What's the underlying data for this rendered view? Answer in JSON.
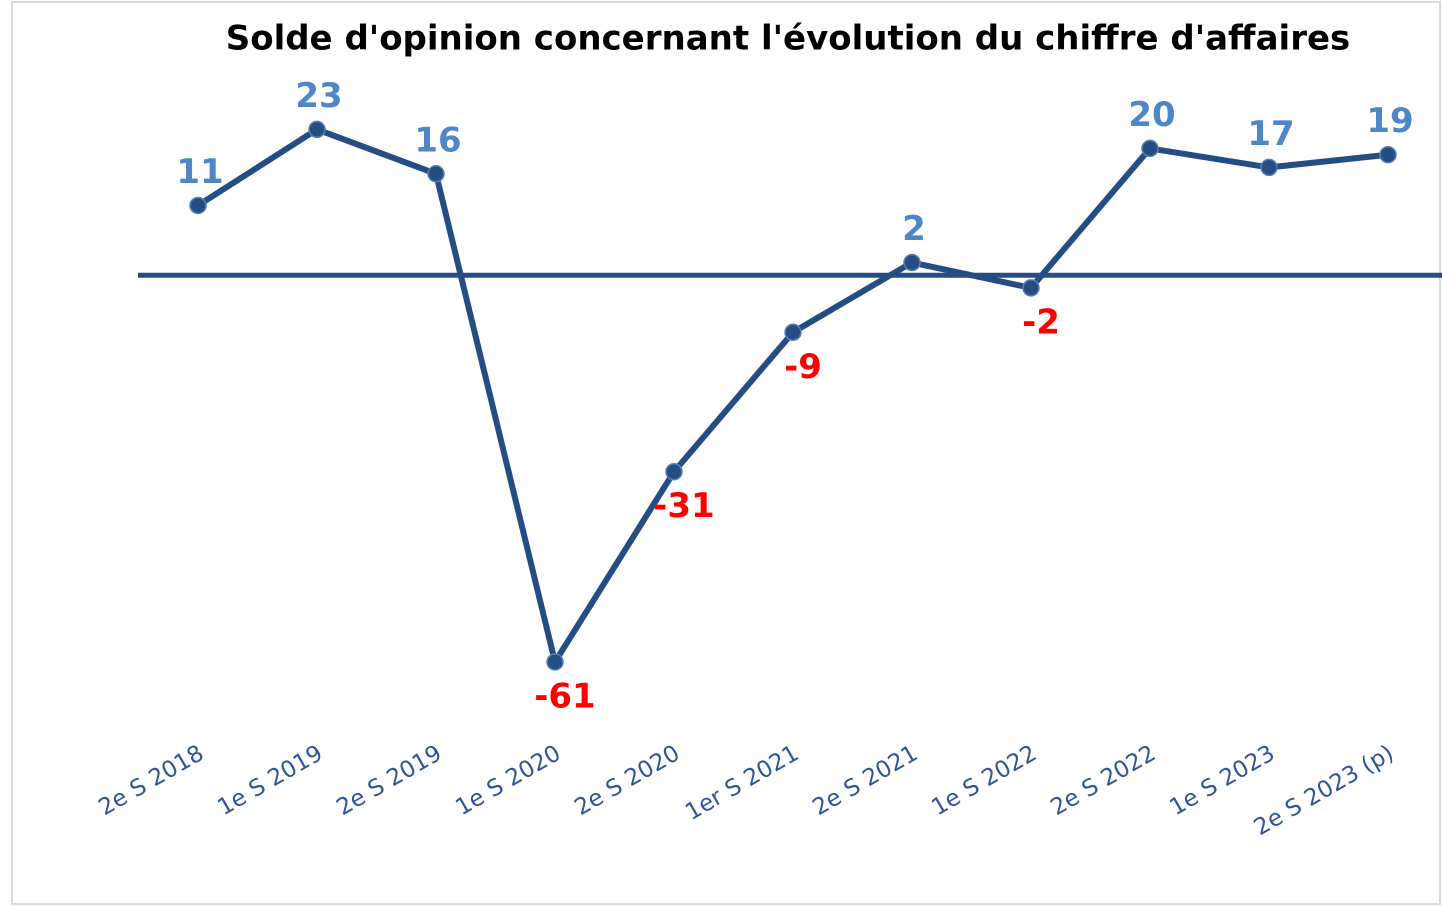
{
  "chart_data": {
    "type": "line",
    "title": "Solde d'opinion concernant l'évolution du chiffre d'affaires",
    "categories": [
      "2e S 2018",
      "1e S 2019",
      "2e S 2019",
      "1e S 2020",
      "2e S 2020",
      "1er S 2021",
      "2e S 2021",
      "1e S 2022",
      "2e S 2022",
      "1e S 2023",
      "2e S 2023 (p)"
    ],
    "values": [
      11,
      23,
      16,
      -61,
      -31,
      -9,
      2,
      -2,
      20,
      17,
      19
    ],
    "color": "#244d84",
    "positive_label_color": "#4f86c6",
    "negative_label_color": "#ff0000",
    "ylim": [
      -70,
      30
    ]
  }
}
